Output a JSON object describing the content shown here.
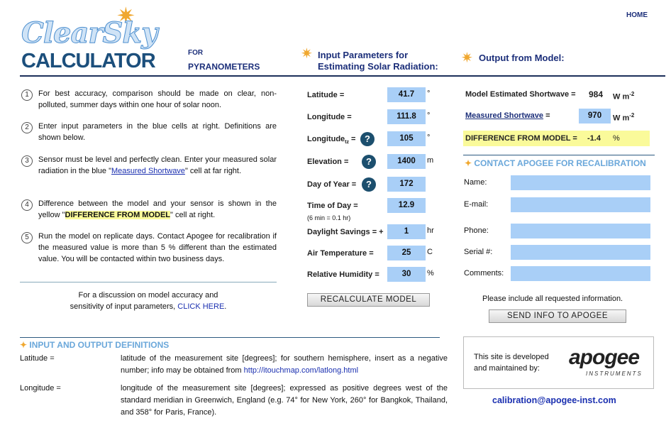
{
  "header": {
    "logo_top": "ClearSky",
    "logo_bottom": "CALCULATOR",
    "for": "FOR",
    "pyranometers": "PYRANOMETERS",
    "home": "HOME",
    "input_title_1": "Input Parameters for",
    "input_title_2": "Estimating Solar Radiation:",
    "output_title": "Output from Model:"
  },
  "instructions": [
    {
      "n": "1",
      "text": "For best accuracy, comparison should be made on clear, non-polluted, summer days within one hour of solar noon."
    },
    {
      "n": "2",
      "text": "Enter input parameters in the blue cells at right. Definitions are shown below."
    },
    {
      "n": "3",
      "pre": "Sensor must be level and perfectly clean. Enter your measured solar radiation in the blue \"",
      "link": "Measured Shortwave",
      "post": "\" cell at far right."
    },
    {
      "n": "4",
      "pre": "Difference between the model and your sensor is shown in the yellow \"",
      "hl": "DIFFERENCE FROM MODEL",
      "post": "\" cell at right."
    },
    {
      "n": "5",
      "text": "Run the model on replicate days. Contact Apogee for recalibration if the measured value is more than 5 % different than the estimated value. You will be contacted within two business days."
    }
  ],
  "discussion": {
    "line1": "For a discussion on model accuracy and",
    "line2": "sensitivity of input parameters, ",
    "link": "CLICK HERE",
    "end": "."
  },
  "inputs": [
    {
      "label": "Latitude =",
      "value": "41.7",
      "unit": "°"
    },
    {
      "label": "Longitude =",
      "value": "111.8",
      "unit": "°"
    },
    {
      "label": "Longitude",
      "sub": "tz",
      "eq": " =",
      "value": "105",
      "unit": "°",
      "help": true
    },
    {
      "label": "Elevation =",
      "value": "1400",
      "unit": "m",
      "help": true
    },
    {
      "label": "Day of Year =",
      "value": "172",
      "unit": "",
      "help": true
    },
    {
      "label": "Time of Day =",
      "note": "(6 min = 0.1 hr)",
      "value": "12.9",
      "unit": ""
    },
    {
      "label": "Daylight Savings = +",
      "value": "1",
      "unit": "hr"
    },
    {
      "label": "Air Temperature =",
      "value": "25",
      "unit": "C"
    },
    {
      "label": "Relative Humidity =",
      "value": "30",
      "unit": "%"
    }
  ],
  "recalc": "RECALCULATE MODEL",
  "output": {
    "model_label": "Model Estimated Shortwave =",
    "model_value": "984",
    "unit": "W m",
    "exp": "-2",
    "measured_label": "Measured Shortwave",
    "measured_eq": " =",
    "measured_value": "970",
    "diff_label": "DIFFERENCE FROM MODEL =",
    "diff_value": "-1.4",
    "diff_unit": "%"
  },
  "contact": {
    "title": "CONTACT APOGEE FOR RECALIBRATION",
    "fields": [
      "Name:",
      "E-mail:",
      "Phone:",
      "Serial #:",
      "Comments:"
    ],
    "note": "Please include all requested information.",
    "send": "SEND INFO TO APOGEE"
  },
  "definitions": {
    "title": "INPUT AND OUTPUT DEFINITIONS",
    "items": [
      {
        "term": "Latitude =",
        "text": "latitude of the measurement site [degrees]; for southern hemisphere, insert as a negative number; info may be obtained from ",
        "link": "http://itouchmap.com/latlong.html"
      },
      {
        "term": "Longitude =",
        "text": "longitude of the measurement site [degrees]; expressed as positive degrees west of the standard meridian in Greenwich, England (e.g. 74° for New York, 260° for Bangkok, Thailand, and 358° for Paris, France)."
      }
    ]
  },
  "footer": {
    "developed_1": "This site is developed",
    "developed_2": "and maintained by:",
    "brand": "apogee",
    "brand_sub": "INSTRUMENTS",
    "email": "calibration@apogee-inst.com"
  },
  "colors": {
    "input_blue": "#a9cff7",
    "highlight_yellow": "#fafa9a",
    "navy": "#1c2f7a"
  }
}
